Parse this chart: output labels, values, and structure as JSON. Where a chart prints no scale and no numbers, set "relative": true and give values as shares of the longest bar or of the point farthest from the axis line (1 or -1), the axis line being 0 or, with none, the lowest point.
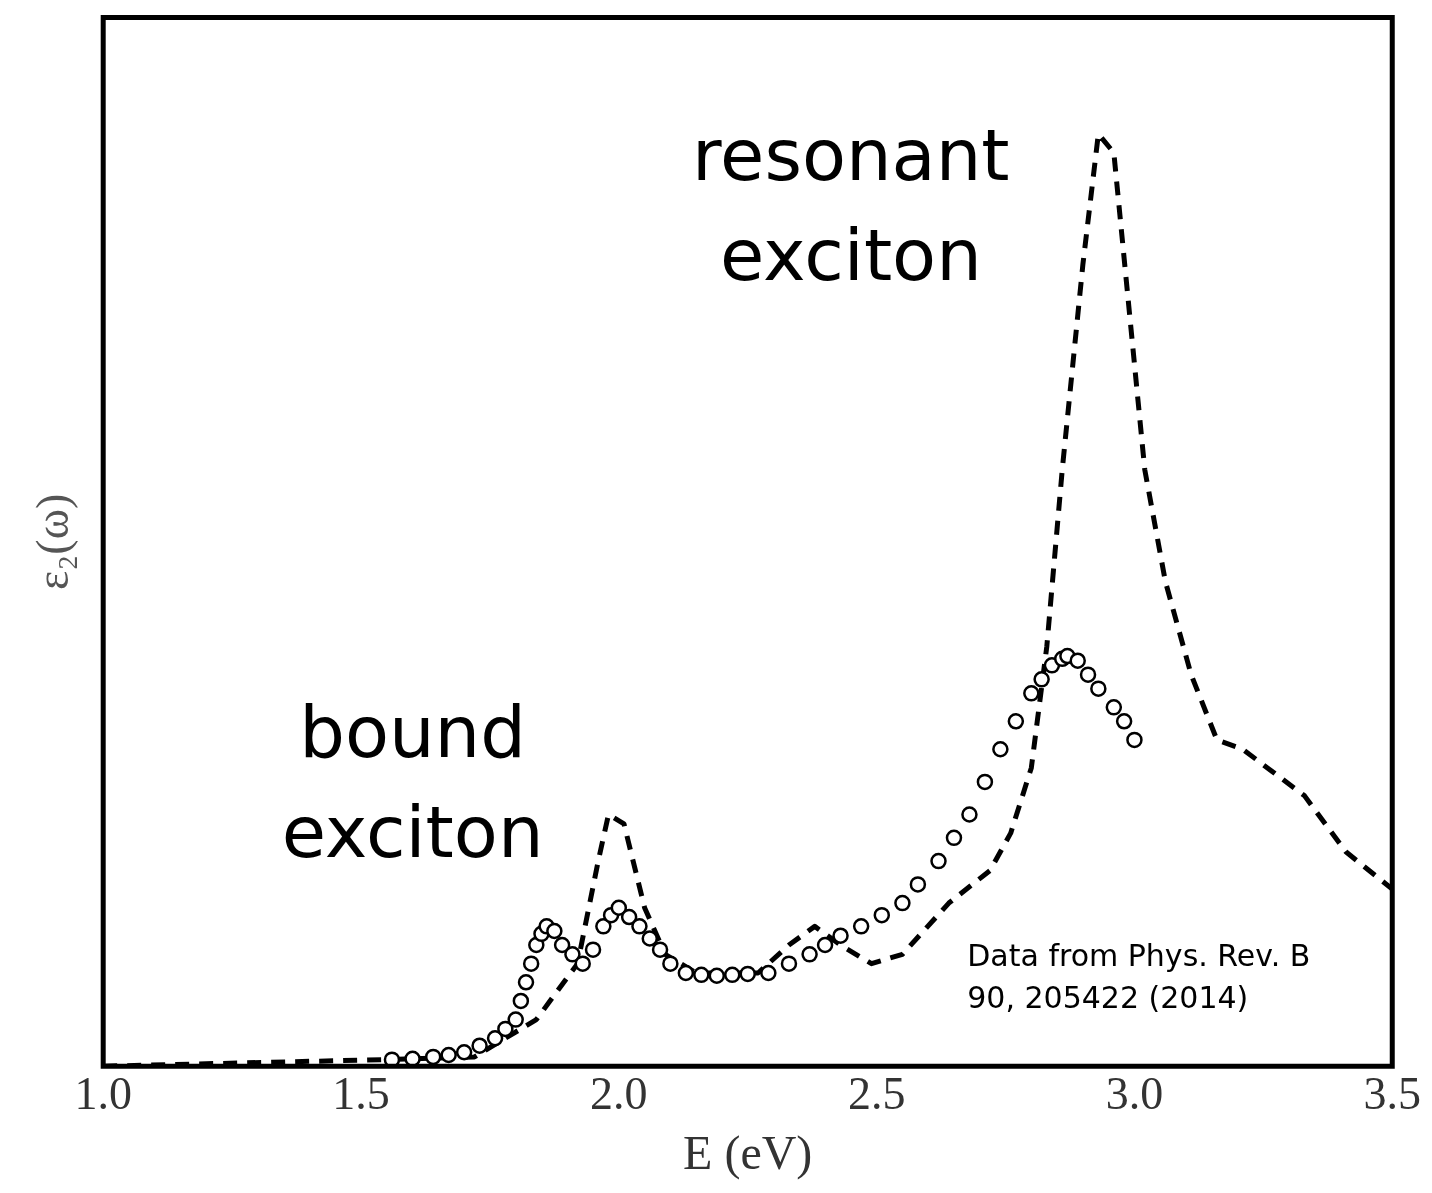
{
  "chart_data": {
    "type": "line",
    "relative": true,
    "xlabel": "E (eV)",
    "ylabel": "ε₂(ω)",
    "xlim": [
      1.0,
      3.5
    ],
    "xticks": [
      {
        "value": 1,
        "label": "1.0"
      },
      {
        "value": 1.5,
        "label": "1.5"
      },
      {
        "value": 2,
        "label": "2.0"
      },
      {
        "value": 2.5,
        "label": "2.5"
      },
      {
        "value": 3,
        "label": "3.0"
      },
      {
        "value": 3.5,
        "label": "3.5"
      }
    ],
    "grid": false,
    "legend": false,
    "annotations": [
      "resonant exciton",
      "bound exciton",
      "Data from Phys. Rev. B 90, 205422 (2014)"
    ],
    "series": [
      {
        "line_style": "dashed",
        "marker": "none",
        "color": "#000000",
        "x": [
          1.0,
          1.54,
          1.72,
          1.84,
          1.92,
          1.96,
          1.98,
          2.01,
          2.05,
          2.09,
          2.15,
          2.27,
          2.33,
          2.38,
          2.43,
          2.49,
          2.55,
          2.64,
          2.72,
          2.76,
          2.8,
          2.83,
          2.86,
          2.9,
          2.93,
          2.96,
          2.99,
          3.02,
          3.06,
          3.11,
          3.16,
          3.21,
          3.33,
          3.41,
          3.5
        ],
        "values": [
          0,
          0.007,
          0.01,
          0.05,
          0.11,
          0.22,
          0.27,
          0.26,
          0.17,
          0.12,
          0.1,
          0.1,
          0.13,
          0.15,
          0.13,
          0.11,
          0.12,
          0.175,
          0.21,
          0.25,
          0.32,
          0.45,
          0.64,
          0.86,
          1.0,
          0.98,
          0.81,
          0.64,
          0.52,
          0.42,
          0.35,
          0.34,
          0.29,
          0.23,
          0.19
        ]
      },
      {
        "type": "scatter",
        "marker": "circle",
        "color": "#000000",
        "x": [
          1.56,
          1.6,
          1.64,
          1.67,
          1.7,
          1.73,
          1.76,
          1.78,
          1.8,
          1.81,
          1.82,
          1.83,
          1.84,
          1.85,
          1.86,
          1.875,
          1.89,
          1.91,
          1.93,
          1.95,
          1.97,
          1.985,
          2.0,
          2.02,
          2.04,
          2.06,
          2.08,
          2.1,
          2.13,
          2.16,
          2.19,
          2.22,
          2.25,
          2.29,
          2.33,
          2.37,
          2.4,
          2.43,
          2.47,
          2.51,
          2.55,
          2.58,
          2.62,
          2.65,
          2.68,
          2.71,
          2.74,
          2.77,
          2.8,
          2.82,
          2.84,
          2.86,
          2.87,
          2.89,
          2.91,
          2.93,
          2.96,
          2.98,
          3.0
        ],
        "values": [
          0.007,
          0.008,
          0.01,
          0.012,
          0.015,
          0.022,
          0.03,
          0.04,
          0.05,
          0.07,
          0.09,
          0.11,
          0.13,
          0.142,
          0.15,
          0.145,
          0.13,
          0.12,
          0.11,
          0.125,
          0.15,
          0.162,
          0.17,
          0.16,
          0.15,
          0.137,
          0.125,
          0.11,
          0.1,
          0.098,
          0.097,
          0.098,
          0.099,
          0.1,
          0.11,
          0.12,
          0.13,
          0.14,
          0.15,
          0.162,
          0.175,
          0.195,
          0.22,
          0.245,
          0.27,
          0.305,
          0.34,
          0.37,
          0.4,
          0.415,
          0.43,
          0.437,
          0.44,
          0.435,
          0.42,
          0.405,
          0.385,
          0.37,
          0.35
        ]
      }
    ]
  }
}
